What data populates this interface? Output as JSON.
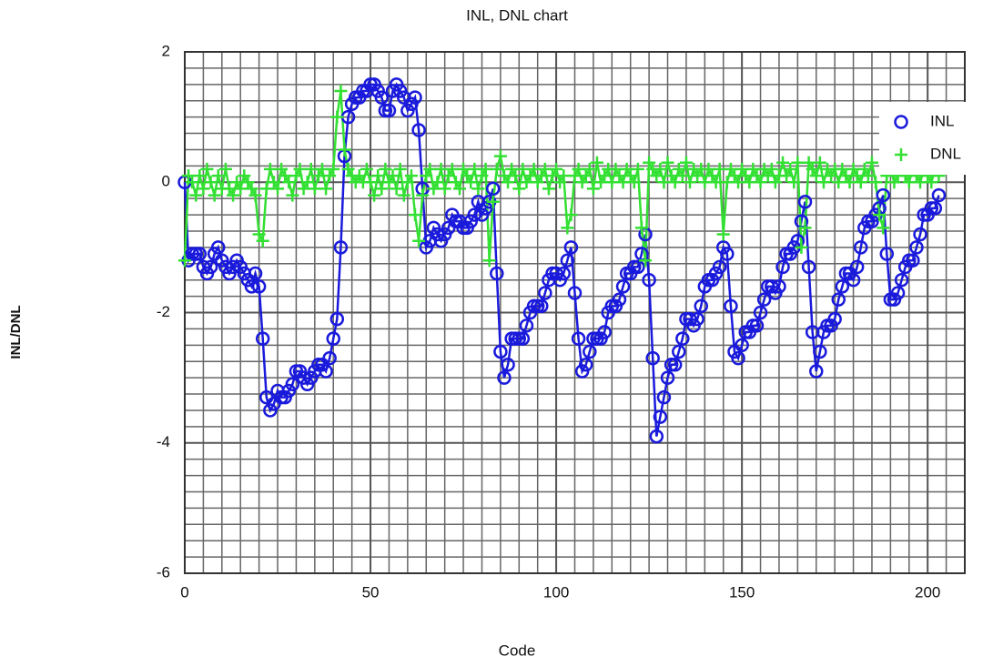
{
  "chart_data": {
    "type": "line",
    "title": "INL, DNL chart",
    "xlabel": "Code",
    "ylabel": "INL/DNL",
    "x": [
      0,
      1,
      2,
      3,
      4,
      5,
      6,
      7,
      8,
      9,
      10,
      11,
      12,
      13,
      14,
      15,
      16,
      17,
      18,
      19,
      20,
      21,
      22,
      23,
      24,
      25,
      26,
      27,
      28,
      29,
      30,
      31,
      32,
      33,
      34,
      35,
      36,
      37,
      38,
      39,
      40,
      41,
      42,
      43,
      44,
      45,
      46,
      47,
      48,
      49,
      50,
      51,
      52,
      53,
      54,
      55,
      56,
      57,
      58,
      59,
      60,
      61,
      62,
      63,
      64,
      65,
      66,
      67,
      68,
      69,
      70,
      71,
      72,
      73,
      74,
      75,
      76,
      77,
      78,
      79,
      80,
      81,
      82,
      83,
      84,
      85,
      86,
      87,
      88,
      89,
      90,
      91,
      92,
      93,
      94,
      95,
      96,
      97,
      98,
      99,
      100,
      101,
      102,
      103,
      104,
      105,
      106,
      107,
      108,
      109,
      110,
      111,
      112,
      113,
      114,
      115,
      116,
      117,
      118,
      119,
      120,
      121,
      122,
      123,
      124,
      125,
      126,
      127,
      128,
      129,
      130,
      131,
      132,
      133,
      134,
      135,
      136,
      137,
      138,
      139,
      140,
      141,
      142,
      143,
      144,
      145,
      146,
      147,
      148,
      149,
      150,
      151,
      152,
      153,
      154,
      155,
      156,
      157,
      158,
      159,
      160,
      161,
      162,
      163,
      164,
      165,
      166,
      167,
      168,
      169,
      170,
      171,
      172,
      173,
      174,
      175,
      176,
      177,
      178,
      179,
      180,
      181,
      182,
      183,
      184,
      185,
      186,
      187,
      188,
      189,
      190,
      191,
      192,
      193,
      194,
      195,
      196,
      197,
      198,
      199,
      200,
      201,
      202,
      203
    ],
    "series": [
      {
        "name": "INL",
        "color": "#1a1adc",
        "marker": "circle",
        "values": [
          0,
          -1.2,
          -1.1,
          -1.1,
          -1.1,
          -1.3,
          -1.4,
          -1.3,
          -1.1,
          -1.0,
          -1.2,
          -1.3,
          -1.4,
          -1.3,
          -1.2,
          -1.3,
          -1.4,
          -1.5,
          -1.6,
          -1.4,
          -1.6,
          -2.4,
          -3.3,
          -3.5,
          -3.4,
          -3.2,
          -3.3,
          -3.3,
          -3.2,
          -3.1,
          -2.9,
          -2.9,
          -3.0,
          -3.1,
          -3.0,
          -2.9,
          -2.8,
          -2.8,
          -2.9,
          -2.7,
          -2.4,
          -2.1,
          -1.0,
          0.4,
          1.0,
          1.2,
          1.3,
          1.3,
          1.4,
          1.4,
          1.5,
          1.5,
          1.4,
          1.3,
          1.1,
          1.1,
          1.4,
          1.5,
          1.4,
          1.3,
          1.1,
          1.2,
          1.3,
          0.8,
          -0.1,
          -1.0,
          -0.9,
          -0.7,
          -0.8,
          -0.9,
          -0.8,
          -0.7,
          -0.5,
          -0.6,
          -0.6,
          -0.7,
          -0.7,
          -0.6,
          -0.5,
          -0.3,
          -0.5,
          -0.4,
          -0.3,
          -0.1,
          -1.4,
          -2.6,
          -3.0,
          -2.8,
          -2.4,
          -2.4,
          -2.4,
          -2.4,
          -2.2,
          -2.0,
          -1.9,
          -1.9,
          -1.9,
          -1.7,
          -1.5,
          -1.4,
          -1.4,
          -1.5,
          -1.4,
          -1.2,
          -1.0,
          -1.7,
          -2.4,
          -2.9,
          -2.8,
          -2.6,
          -2.4,
          -2.4,
          -2.4,
          -2.3,
          -2.0,
          -1.9,
          -1.9,
          -1.8,
          -1.6,
          -1.4,
          -1.4,
          -1.3,
          -1.3,
          -1.1,
          -0.8,
          -1.5,
          -2.7,
          -3.9,
          -3.6,
          -3.3,
          -3.0,
          -2.8,
          -2.8,
          -2.6,
          -2.4,
          -2.1,
          -2.1,
          -2.2,
          -2.1,
          -1.9,
          -1.6,
          -1.5,
          -1.5,
          -1.4,
          -1.3,
          -1.0,
          -1.1,
          -1.9,
          -2.6,
          -2.7,
          -2.5,
          -2.3,
          -2.3,
          -2.2,
          -2.2,
          -2.0,
          -1.8,
          -1.6,
          -1.6,
          -1.7,
          -1.6,
          -1.3,
          -1.1,
          -1.1,
          -1.0,
          -0.9,
          -0.6,
          -0.3,
          -1.3,
          -2.3,
          -2.9,
          -2.6,
          -2.3,
          -2.2,
          -2.2,
          -2.1,
          -1.8,
          -1.6,
          -1.4,
          -1.4,
          -1.5,
          -1.3,
          -1.0,
          -0.7,
          -0.6,
          -0.6,
          -0.5,
          -0.4,
          -0.2,
          -1.1,
          -1.8,
          -1.8,
          -1.7,
          -1.5,
          -1.3,
          -1.2,
          -1.2,
          -1.0,
          -0.8,
          -0.5,
          -0.5,
          -0.4,
          -0.4,
          -0.2
        ]
      },
      {
        "name": "DNL",
        "color": "#33e033",
        "marker": "plus",
        "values": [
          -1.2,
          0.1,
          0.0,
          -0.2,
          0.1,
          -0.1,
          0.2,
          0.0,
          -0.2,
          0.1,
          -0.1,
          0.2,
          -0.1,
          -0.2,
          0.0,
          -0.1,
          0.1,
          0.0,
          -0.1,
          -0.2,
          -0.8,
          -0.9,
          -0.1,
          0.2,
          0.0,
          -0.1,
          0.2,
          0.1,
          0.0,
          -0.2,
          0.1,
          0.2,
          -0.1,
          0.0,
          0.2,
          -0.1,
          0.1,
          0.2,
          -0.1,
          0.1,
          0.2,
          1.0,
          1.4,
          0.5,
          0.2,
          0.1,
          0.0,
          0.1,
          0.0,
          0.2,
          0.0,
          -0.2,
          0.1,
          -0.1,
          0.2,
          0.0,
          0.1,
          -0.1,
          0.2,
          -0.2,
          0.0,
          0.1,
          -0.5,
          -0.9,
          -0.2,
          0.1,
          0.2,
          -0.1,
          0.0,
          0.2,
          -0.1,
          0.1,
          0.2,
          0.0,
          -0.1,
          0.2,
          0.1,
          0.0,
          0.2,
          -0.1,
          0.1,
          0.2,
          -1.2,
          -0.3,
          0.2,
          0.4,
          0.1,
          0.0,
          0.2,
          0.1,
          -0.1,
          0.2,
          0.0,
          0.1,
          0.2,
          0.0,
          0.1,
          0.2,
          -0.1,
          0.1,
          0.2,
          0.0,
          0.1,
          -0.7,
          -0.5,
          0.1,
          0.2,
          0.0,
          0.1,
          0.2,
          -0.1,
          0.3,
          0.0,
          0.1,
          0.2,
          0.0,
          0.2,
          0.1,
          0.0,
          0.2,
          0.1,
          0.0,
          0.2,
          -0.7,
          -1.2,
          0.3,
          0.2,
          0.1,
          0.2,
          0.0,
          0.3,
          0.1,
          0.0,
          0.2,
          0.1,
          0.3,
          0.0,
          0.2,
          0.1,
          0.2,
          0.0,
          0.2,
          0.1,
          0.0,
          0.2,
          -0.8,
          0.0,
          0.2,
          0.1,
          0.0,
          0.2,
          0.1,
          0.0,
          0.2,
          0.1,
          0.0,
          0.2,
          0.1,
          0.2,
          0.0,
          0.1,
          0.3,
          0.1,
          0.2,
          0.0,
          0.3,
          -1.0,
          -0.7,
          0.3,
          0.2,
          0.1,
          0.3,
          0.0,
          0.2,
          0.1,
          0.2,
          0.0,
          0.2,
          0.1,
          0.0,
          0.2,
          0.1,
          0.0,
          0.2,
          0.1,
          0.3,
          0.0,
          -0.5,
          -0.7,
          0.1,
          0.2,
          0.0,
          0.1,
          0.2,
          0.1,
          0.0,
          0.2,
          0.1,
          0.0,
          0.2,
          0.1,
          0.0,
          0.2,
          0.1
        ]
      }
    ],
    "xlim": [
      0,
      210
    ],
    "xticks": [
      0,
      50,
      100,
      150,
      200
    ],
    "ylim": [
      -6,
      2
    ],
    "yticks": [
      -6,
      -4,
      -2,
      0,
      2
    ],
    "grid": true,
    "legend": "upper right"
  }
}
